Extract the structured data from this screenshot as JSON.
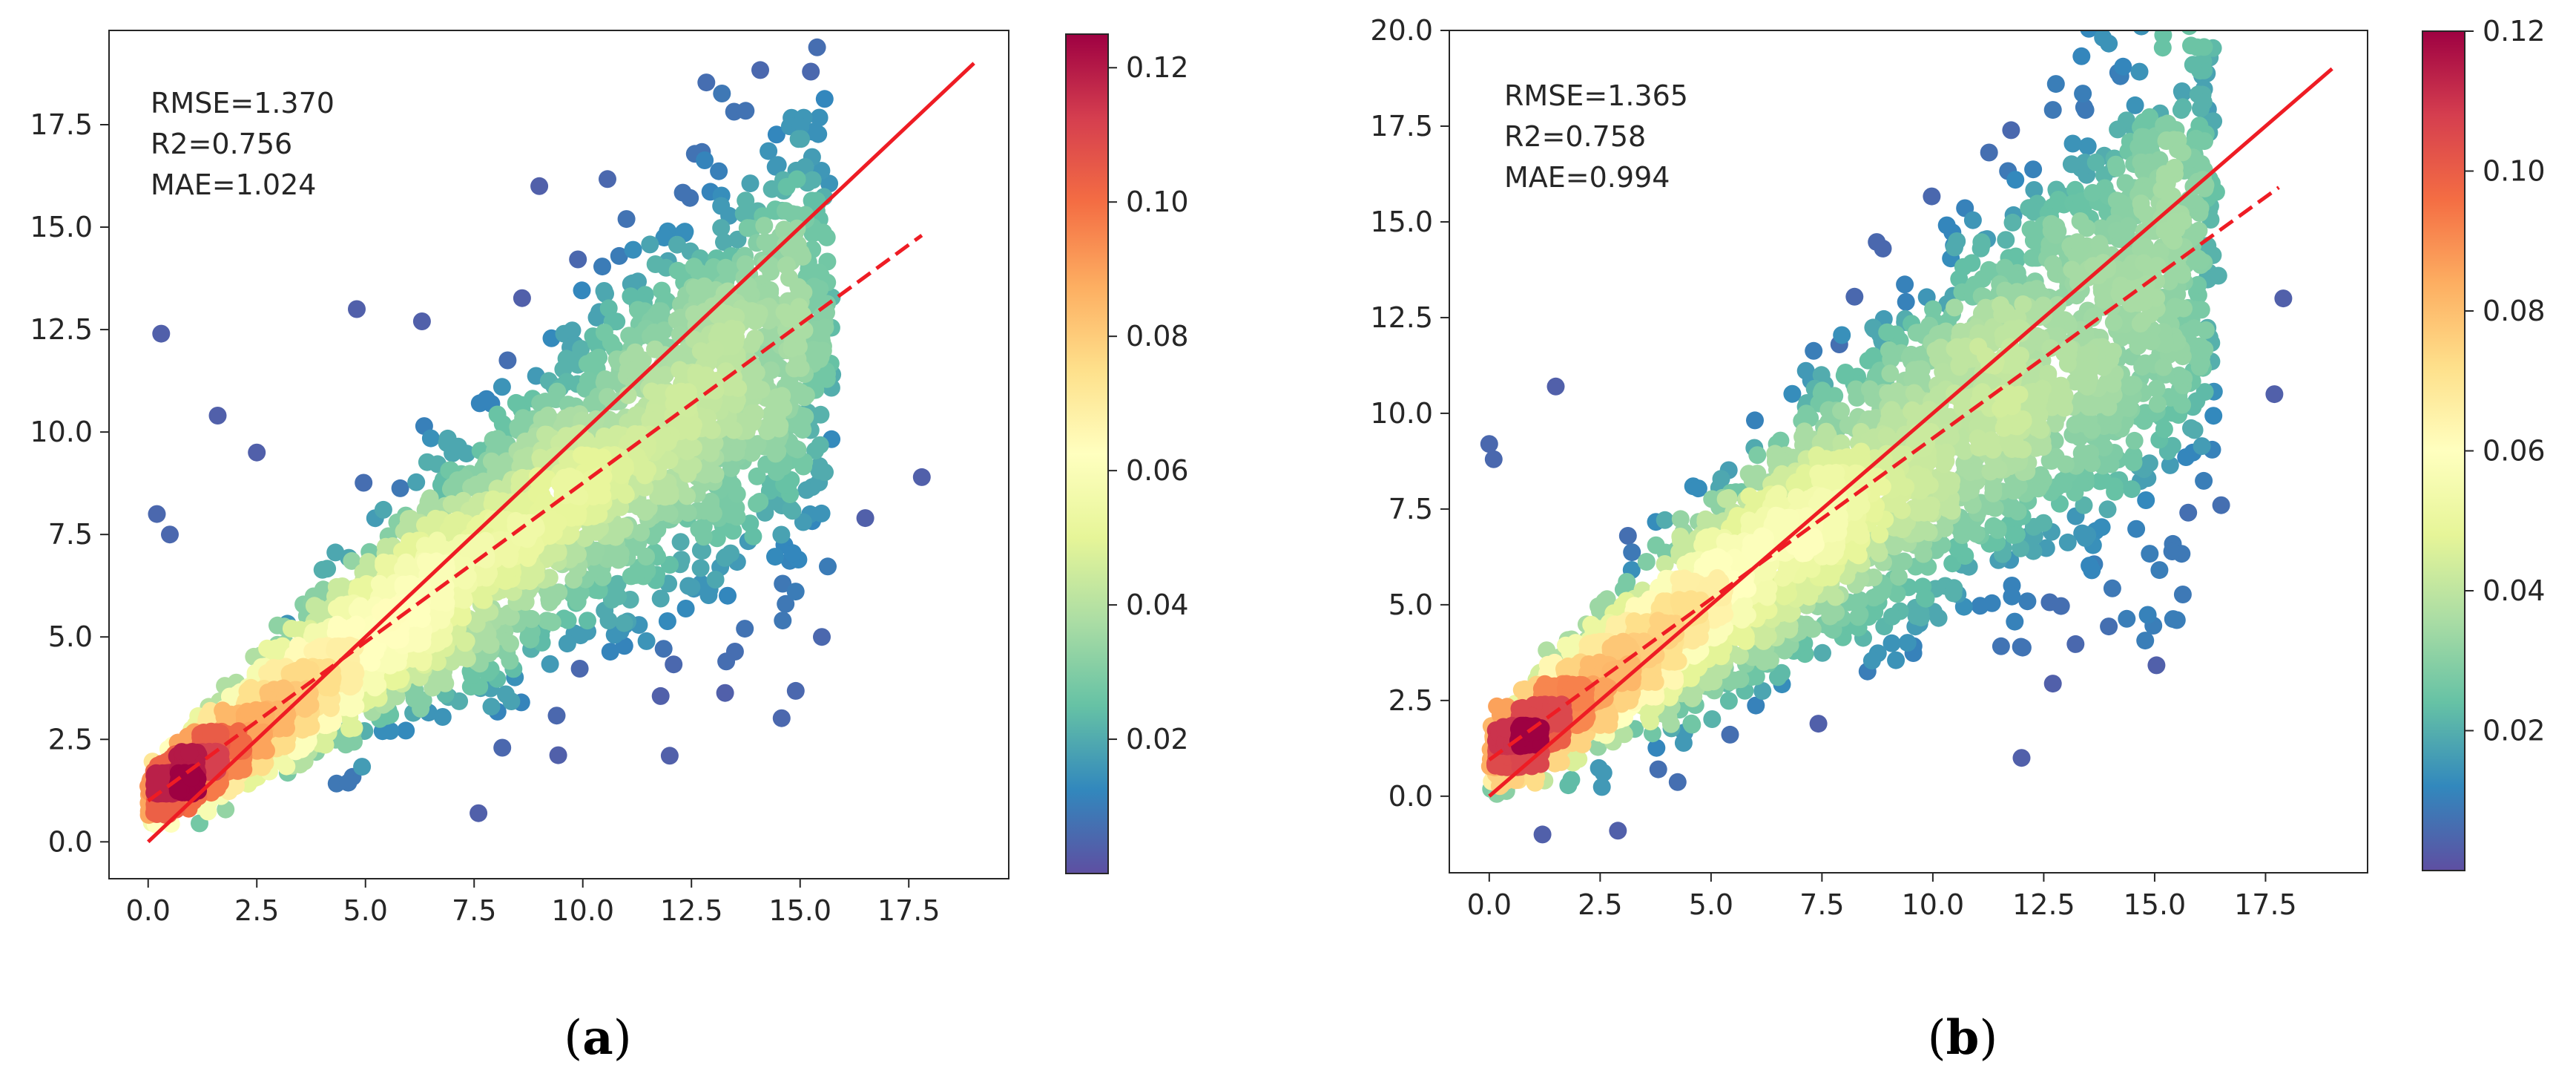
{
  "colors": {
    "fit_line": "#ee1c24",
    "axis": "#262626",
    "colormap": [
      "#5e4fa2",
      "#3288bd",
      "#66c2a5",
      "#abdda4",
      "#e6f598",
      "#ffffbf",
      "#fee08b",
      "#fdae61",
      "#f46d43",
      "#d53e4f",
      "#9e0142"
    ]
  },
  "chart_data": [
    {
      "id": "a",
      "type": "scatter",
      "subtype": "density-colored scatter",
      "caption": {
        "open": "(",
        "letter": "a",
        "close": ")"
      },
      "stats": [
        "RMSE=1.370",
        "R2=0.756",
        "MAE=1.024"
      ],
      "xlim": [
        -0.9,
        19.8
      ],
      "ylim": [
        -0.9,
        19.8
      ],
      "xticks": [
        0,
        2.5,
        5,
        7.5,
        10,
        12.5,
        15,
        17.5
      ],
      "xtick_labels": [
        "0.0",
        "2.5",
        "5.0",
        "7.5",
        "10.0",
        "12.5",
        "15.0",
        "17.5"
      ],
      "yticks": [
        0,
        2.5,
        5,
        7.5,
        10,
        12.5,
        15,
        17.5
      ],
      "ytick_labels": [
        "0.0",
        "2.5",
        "5.0",
        "7.5",
        "10.0",
        "12.5",
        "15.0",
        "17.5"
      ],
      "identity_line": {
        "style": "solid",
        "from": [
          0,
          0
        ],
        "to": [
          19,
          19
        ]
      },
      "fit_line": {
        "style": "dashed",
        "from": [
          0,
          1.0
        ],
        "to": [
          17.8,
          14.8
        ]
      },
      "cloud": {
        "spread": 1.1,
        "x_max": 15.5,
        "fit_intercept": 1.0,
        "fit_slope": 0.776
      },
      "outliers": [
        [
          0.3,
          12.4
        ],
        [
          1.6,
          10.4
        ],
        [
          4.8,
          13.0
        ],
        [
          9.0,
          16.0
        ],
        [
          17.8,
          8.9
        ],
        [
          15.5,
          5.0
        ],
        [
          12.0,
          2.1
        ],
        [
          14.6,
          5.4
        ],
        [
          16.5,
          7.9
        ],
        [
          7.6,
          0.7
        ],
        [
          0.5,
          7.5
        ],
        [
          0.2,
          8.0
        ],
        [
          13.3,
          4.4
        ],
        [
          2.5,
          9.5
        ],
        [
          6.3,
          12.7
        ]
      ],
      "colorbar": {
        "range": [
          0.0,
          0.125
        ],
        "ticks": [
          0.02,
          0.04,
          0.06,
          0.08,
          0.1,
          0.12
        ],
        "tick_labels": [
          "0.02",
          "0.04",
          "0.06",
          "0.08",
          "0.10",
          "0.12"
        ]
      }
    },
    {
      "id": "b",
      "type": "scatter",
      "subtype": "density-colored scatter",
      "caption": {
        "open": "(",
        "letter": "b",
        "close": ")"
      },
      "stats": [
        "RMSE=1.365",
        "R2=0.758",
        "MAE=0.994"
      ],
      "xlim": [
        -0.9,
        19.8
      ],
      "ylim": [
        -2.0,
        20.0
      ],
      "xticks": [
        0,
        2.5,
        5,
        7.5,
        10,
        12.5,
        15,
        17.5
      ],
      "xtick_labels": [
        "0.0",
        "2.5",
        "5.0",
        "7.5",
        "10.0",
        "12.5",
        "15.0",
        "17.5"
      ],
      "yticks": [
        0,
        2.5,
        5,
        7.5,
        10,
        12.5,
        15,
        17.5,
        20
      ],
      "ytick_labels": [
        "0.0",
        "2.5",
        "5.0",
        "7.5",
        "10.0",
        "12.5",
        "15.0",
        "17.5",
        "20.0"
      ],
      "identity_line": {
        "style": "solid",
        "from": [
          0,
          0
        ],
        "to": [
          19,
          19
        ]
      },
      "fit_line": {
        "style": "dashed",
        "from": [
          0,
          0.95
        ],
        "to": [
          17.8,
          15.9
        ]
      },
      "cloud": {
        "spread": 1.3,
        "x_max": 16.2,
        "fit_intercept": 0.95,
        "fit_slope": 0.84
      },
      "outliers": [
        [
          1.2,
          -1.0
        ],
        [
          2.9,
          -0.9
        ],
        [
          12.0,
          1.0
        ],
        [
          15.5,
          4.6
        ],
        [
          17.7,
          10.5
        ],
        [
          17.9,
          13.0
        ],
        [
          0.0,
          9.2
        ],
        [
          1.5,
          10.7
        ],
        [
          16.5,
          7.6
        ],
        [
          0.1,
          8.8
        ]
      ],
      "colorbar": {
        "range": [
          0.0,
          0.12
        ],
        "ticks": [
          0.02,
          0.04,
          0.06,
          0.08,
          0.1,
          0.12
        ],
        "tick_labels": [
          "0.02",
          "0.04",
          "0.06",
          "0.08",
          "0.10",
          "0.12"
        ]
      }
    }
  ]
}
